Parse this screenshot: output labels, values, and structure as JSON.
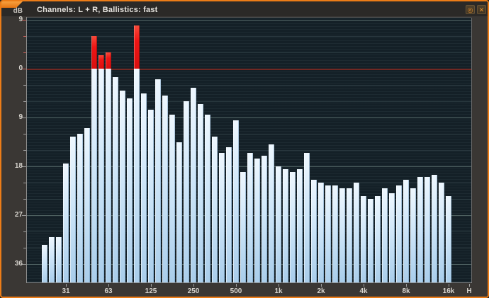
{
  "window": {
    "title": "Channels: L + R, Ballistics: fast",
    "unit_label": "dB",
    "accent_color": "#ec7c17",
    "buttons": {
      "settings_glyph": "◎",
      "close_glyph": "✕"
    }
  },
  "chart_data": {
    "type": "bar",
    "title": "Channels: L + R, Ballistics: fast",
    "ylabel": "dB",
    "ylim": [
      -39.5,
      9.4
    ],
    "grid_step_db": 3,
    "major_step_db": 9,
    "zero_line_db": 0,
    "zero_line_color": "#702823",
    "bar_color": "#cfe6f8",
    "clip_color": "#ee1515",
    "background_color": "#142027",
    "legend": "bars above 0 dB drawn red (clipping)",
    "y_tick_values": [
      9,
      0,
      -9,
      -18,
      -27,
      -36
    ],
    "y_tick_labels": [
      "9",
      "0",
      "9",
      "18",
      "27",
      "36"
    ],
    "x_tick_labels": [
      "31",
      "63",
      "125",
      "250",
      "500",
      "1k",
      "2k",
      "4k",
      "8k",
      "16k",
      "H"
    ],
    "x_tick_band_index": [
      4,
      10,
      16,
      22,
      28,
      34,
      40,
      46,
      52,
      58,
      null
    ],
    "bands_hz": [
      22.4,
      25,
      28,
      31.5,
      35.5,
      40,
      45,
      50,
      56,
      63,
      71,
      80,
      90,
      100,
      112,
      125,
      140,
      160,
      180,
      200,
      224,
      250,
      280,
      315,
      355,
      400,
      450,
      500,
      560,
      630,
      710,
      800,
      900,
      1000,
      1120,
      1250,
      1400,
      1600,
      1800,
      2000,
      2240,
      2500,
      2800,
      3150,
      3550,
      4000,
      4500,
      5000,
      5600,
      6300,
      7100,
      8000,
      9000,
      10000,
      11200,
      12500,
      14000,
      16000
    ],
    "values_db": [
      -32.5,
      -31,
      -31,
      -17.5,
      -12.5,
      -12,
      -11,
      6,
      2.5,
      3,
      -1.5,
      -4,
      -5.5,
      8,
      -4.5,
      -7.5,
      -2,
      -5,
      -8.5,
      -13.5,
      -6,
      -3.5,
      -6.5,
      -8.5,
      -12.5,
      -15.5,
      -14.5,
      -9.5,
      -19,
      -15.5,
      -16.5,
      -16,
      -14,
      -18,
      -18.5,
      -19,
      -18.5,
      -15.5,
      -20.5,
      -21,
      -21.5,
      -21.5,
      -22,
      -22,
      -21,
      -23.5,
      -24,
      -23.5,
      -22,
      -23,
      -21.5,
      -20.5,
      -22,
      -20,
      -20,
      -19.5,
      -21,
      -23.5
    ]
  }
}
